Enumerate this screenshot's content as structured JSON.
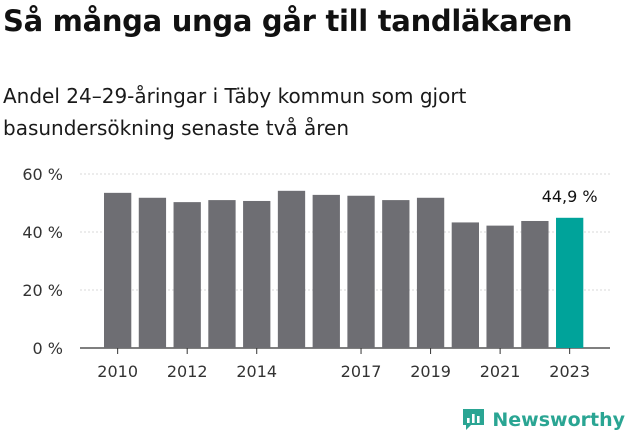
{
  "header": {
    "title": "Så många unga går till tandläkaren",
    "subtitle": "Andel 24–29-åringar i Täby kommun som gjort basundersökning senaste två åren"
  },
  "brand": {
    "name": "Newsworthy",
    "color": "#2aa593"
  },
  "chart_data": {
    "type": "bar",
    "categories": [
      "2010",
      "2011",
      "2012",
      "2013",
      "2014",
      "2015",
      "2016",
      "2017",
      "2018",
      "2019",
      "2020",
      "2021",
      "2022",
      "2023"
    ],
    "tick_labels": [
      "2010",
      "2012",
      "2014",
      "2017",
      "2019",
      "2021",
      "2023"
    ],
    "values": [
      53.5,
      51.8,
      50.3,
      51.0,
      50.7,
      54.2,
      52.8,
      52.5,
      51.0,
      51.8,
      43.3,
      42.2,
      43.8,
      44.9
    ],
    "value_labels": {
      "2023": "44,9 %"
    },
    "ylim": [
      0,
      60
    ],
    "yticks": [
      0,
      20,
      40,
      60
    ],
    "ytick_labels": [
      "0 %",
      "20 %",
      "40 %",
      "60 %"
    ],
    "grid": true,
    "colors": {
      "default": "#6e6e73",
      "highlight": "#00a39a"
    },
    "highlight": "2023"
  }
}
